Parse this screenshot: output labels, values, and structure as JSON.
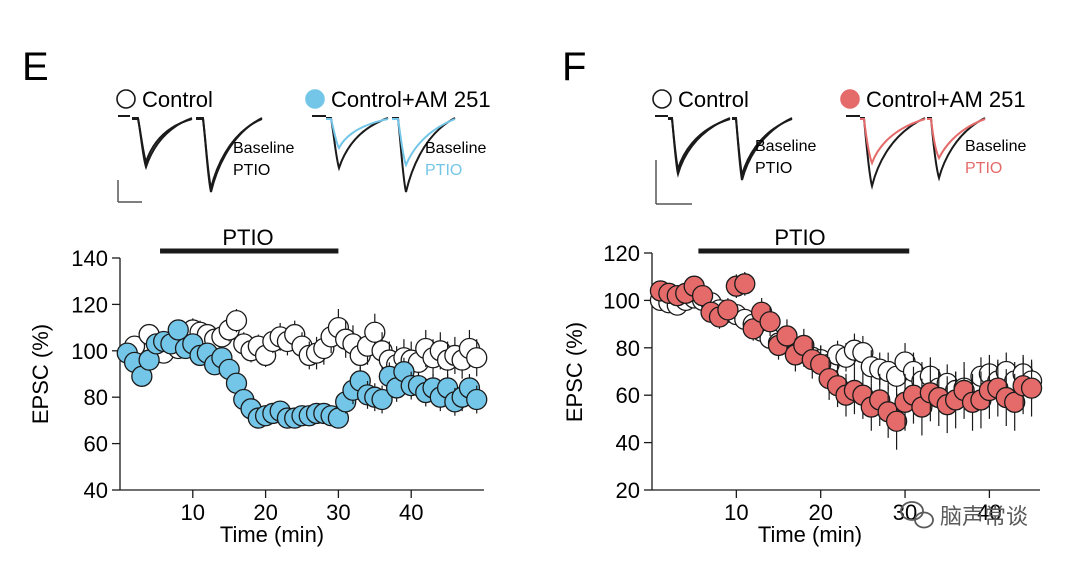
{
  "colors": {
    "blue": "#74c6e8",
    "red": "#e56b6b",
    "black": "#1a1a1a",
    "open": "#ffffff",
    "watermark": "#5a5a5a"
  },
  "watermark": {
    "text": "脑声常谈",
    "icon": "wechat-icon"
  },
  "chart_data": [
    {
      "panel_label": "E",
      "type": "scatter",
      "xlabel": "Time (min)",
      "ylabel": "EPSC (%)",
      "xlim": [
        0,
        50
      ],
      "ylim": [
        40,
        140
      ],
      "xticks": [
        10,
        20,
        30,
        40
      ],
      "yticks": [
        40,
        60,
        80,
        100,
        120,
        140
      ],
      "bar": {
        "label": "PTIO",
        "start": 5.5,
        "end": 30
      },
      "legend": {
        "control": "Control",
        "treated": "Control+AM 251"
      },
      "trace_labels": {
        "baseline": "Baseline",
        "drug": "PTIO"
      },
      "series": [
        {
          "name": "Control",
          "fill": "open",
          "x": [
            2,
            4,
            6,
            8,
            9,
            10,
            11,
            12,
            13,
            14,
            15,
            16,
            17,
            18,
            19,
            20,
            21,
            22,
            23,
            24,
            25,
            26,
            27,
            28,
            29,
            30,
            31,
            32,
            33,
            34,
            35,
            36,
            37,
            38,
            39,
            40,
            41,
            42,
            43,
            44,
            45,
            46,
            47,
            48,
            49
          ],
          "y": [
            102,
            107,
            99,
            101,
            105,
            109,
            108,
            107,
            105,
            106,
            109,
            113,
            103,
            100,
            102,
            98,
            104,
            106,
            104,
            107,
            102,
            98,
            99,
            101,
            106,
            110,
            105,
            103,
            98,
            102,
            108,
            100,
            96,
            94,
            97,
            96,
            95,
            101,
            97,
            100,
            96,
            98,
            96,
            101,
            97
          ],
          "err": [
            4,
            4,
            4,
            4,
            5,
            5,
            5,
            4,
            4,
            5,
            5,
            5,
            5,
            5,
            5,
            5,
            5,
            6,
            6,
            6,
            6,
            6,
            7,
            7,
            7,
            8,
            8,
            8,
            8,
            8,
            8,
            8,
            8,
            8,
            8,
            8,
            8,
            8,
            8,
            8,
            8,
            8,
            8,
            8,
            8
          ]
        },
        {
          "name": "Control+AM 251",
          "fill": "blue",
          "x": [
            1,
            2,
            3,
            4,
            5,
            6,
            7,
            8,
            9,
            10,
            11,
            12,
            13,
            14,
            15,
            16,
            17,
            18,
            19,
            20,
            21,
            22,
            23,
            24,
            25,
            26,
            27,
            28,
            29,
            30,
            31,
            32,
            33,
            34,
            35,
            36,
            37,
            38,
            39,
            40,
            41,
            42,
            43,
            44,
            45,
            46,
            47,
            48,
            49
          ],
          "y": [
            99,
            95,
            89,
            96,
            103,
            104,
            103,
            109,
            101,
            103,
            98,
            99,
            94,
            97,
            92,
            86,
            79,
            75,
            71,
            72,
            73,
            74,
            71,
            71,
            72,
            72,
            73,
            73,
            72,
            71,
            78,
            83,
            87,
            81,
            80,
            79,
            89,
            84,
            91,
            85,
            85,
            82,
            84,
            80,
            84,
            78,
            80,
            84,
            79
          ],
          "err": [
            4,
            4,
            4,
            4,
            4,
            4,
            4,
            4,
            4,
            4,
            4,
            4,
            4,
            4,
            4,
            4,
            4,
            4,
            4,
            4,
            4,
            4,
            4,
            4,
            4,
            4,
            4,
            4,
            4,
            4,
            5,
            6,
            6,
            6,
            6,
            6,
            6,
            6,
            6,
            6,
            6,
            6,
            6,
            6,
            6,
            6,
            6,
            6,
            6
          ]
        }
      ]
    },
    {
      "panel_label": "F",
      "type": "scatter",
      "xlabel": "Time (min)",
      "ylabel": "EPSC (%)",
      "xlim": [
        0,
        46
      ],
      "ylim": [
        20,
        120
      ],
      "xticks": [
        10,
        20,
        30,
        40
      ],
      "yticks": [
        20,
        40,
        60,
        80,
        100,
        120
      ],
      "bar": {
        "label": "PTIO",
        "start": 5.5,
        "end": 30.5
      },
      "legend": {
        "control": "Control",
        "treated": "Control+AM 251"
      },
      "trace_labels": {
        "baseline": "Baseline",
        "drug": "PTIO"
      },
      "series": [
        {
          "name": "Control",
          "fill": "open",
          "x": [
            1,
            2,
            3,
            4,
            5,
            6,
            7,
            8,
            9,
            10,
            11,
            12,
            13,
            14,
            15,
            16,
            17,
            18,
            19,
            20,
            21,
            22,
            23,
            24,
            25,
            26,
            27,
            28,
            29,
            30,
            31,
            32,
            33,
            34,
            35,
            36,
            37,
            38,
            39,
            40,
            41,
            42,
            43,
            44,
            45
          ],
          "y": [
            100,
            99,
            98,
            100,
            101,
            100,
            99,
            96,
            95,
            94,
            92,
            90,
            87,
            84,
            82,
            82,
            80,
            78,
            76,
            75,
            73,
            77,
            76,
            79,
            78,
            72,
            71,
            70,
            68,
            74,
            70,
            66,
            68,
            63,
            65,
            62,
            63,
            61,
            68,
            69,
            66,
            70,
            66,
            69,
            66
          ],
          "err": [
            3,
            3,
            3,
            3,
            3,
            4,
            4,
            4,
            4,
            4,
            4,
            5,
            5,
            5,
            5,
            5,
            6,
            6,
            6,
            6,
            6,
            6,
            6,
            7,
            7,
            7,
            7,
            8,
            8,
            8,
            8,
            8,
            8,
            8,
            8,
            8,
            8,
            8,
            8,
            8,
            8,
            8,
            8,
            8,
            8
          ]
        },
        {
          "name": "Control+AM 251",
          "fill": "red",
          "x": [
            1,
            2,
            3,
            4,
            5,
            6,
            7,
            8,
            9,
            10,
            11,
            12,
            13,
            14,
            15,
            16,
            17,
            18,
            19,
            20,
            21,
            22,
            23,
            24,
            25,
            26,
            27,
            28,
            29,
            30,
            31,
            32,
            33,
            34,
            35,
            36,
            37,
            38,
            39,
            40,
            41,
            42,
            43,
            44,
            45
          ],
          "y": [
            104,
            103,
            102,
            103,
            106,
            102,
            95,
            93,
            96,
            106,
            107,
            88,
            95,
            91,
            81,
            85,
            77,
            81,
            75,
            73,
            67,
            64,
            60,
            62,
            60,
            55,
            58,
            53,
            49,
            57,
            60,
            55,
            61,
            59,
            56,
            58,
            62,
            57,
            58,
            62,
            63,
            59,
            57,
            64,
            63
          ],
          "err": [
            3,
            3,
            3,
            3,
            4,
            4,
            4,
            5,
            5,
            5,
            5,
            5,
            6,
            6,
            6,
            7,
            7,
            7,
            8,
            8,
            9,
            9,
            9,
            10,
            10,
            10,
            11,
            11,
            12,
            12,
            12,
            12,
            12,
            12,
            12,
            12,
            12,
            12,
            12,
            12,
            12,
            12,
            12,
            12,
            12
          ]
        }
      ]
    }
  ]
}
